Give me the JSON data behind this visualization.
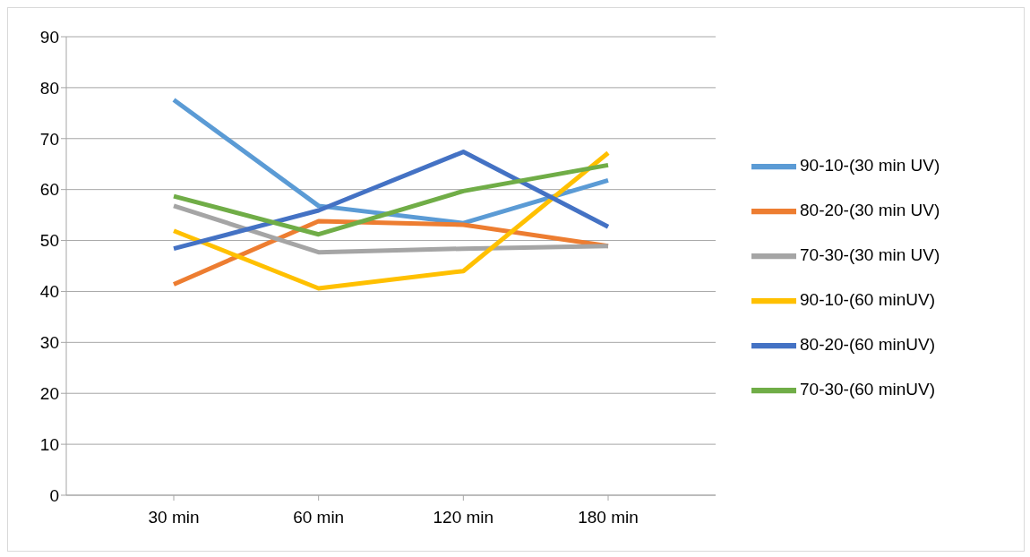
{
  "chart_data": {
    "type": "line",
    "categories": [
      "30 min",
      "60 min",
      "120 min",
      "180 min"
    ],
    "series": [
      {
        "name": "90-10-(30 min UV)",
        "color": "#5b9bd5",
        "values": [
          77.6,
          56.8,
          53.4,
          61.8
        ]
      },
      {
        "name": "80-20-(30 min UV)",
        "color": "#ed7d31",
        "values": [
          41.4,
          53.8,
          53.1,
          48.9
        ]
      },
      {
        "name": "70-30-(30 min UV)",
        "color": "#a5a5a5",
        "values": [
          56.8,
          47.7,
          48.4,
          48.9
        ]
      },
      {
        "name": "90-10-(60 minUV)",
        "color": "#ffc000",
        "values": [
          51.9,
          40.6,
          44.0,
          67.2
        ]
      },
      {
        "name": "80-20-(60 minUV)",
        "color": "#4472c4",
        "values": [
          48.4,
          55.9,
          67.4,
          52.7
        ]
      },
      {
        "name": "70-30-(60 minUV)",
        "color": "#70ad47",
        "values": [
          58.7,
          51.2,
          59.7,
          64.8
        ]
      }
    ],
    "ylim": [
      0,
      90
    ],
    "yticks": [
      0,
      10,
      20,
      30,
      40,
      50,
      60,
      70,
      80,
      90
    ],
    "grid": "y",
    "legend": "right",
    "marker": "none",
    "line_style": "solid"
  }
}
